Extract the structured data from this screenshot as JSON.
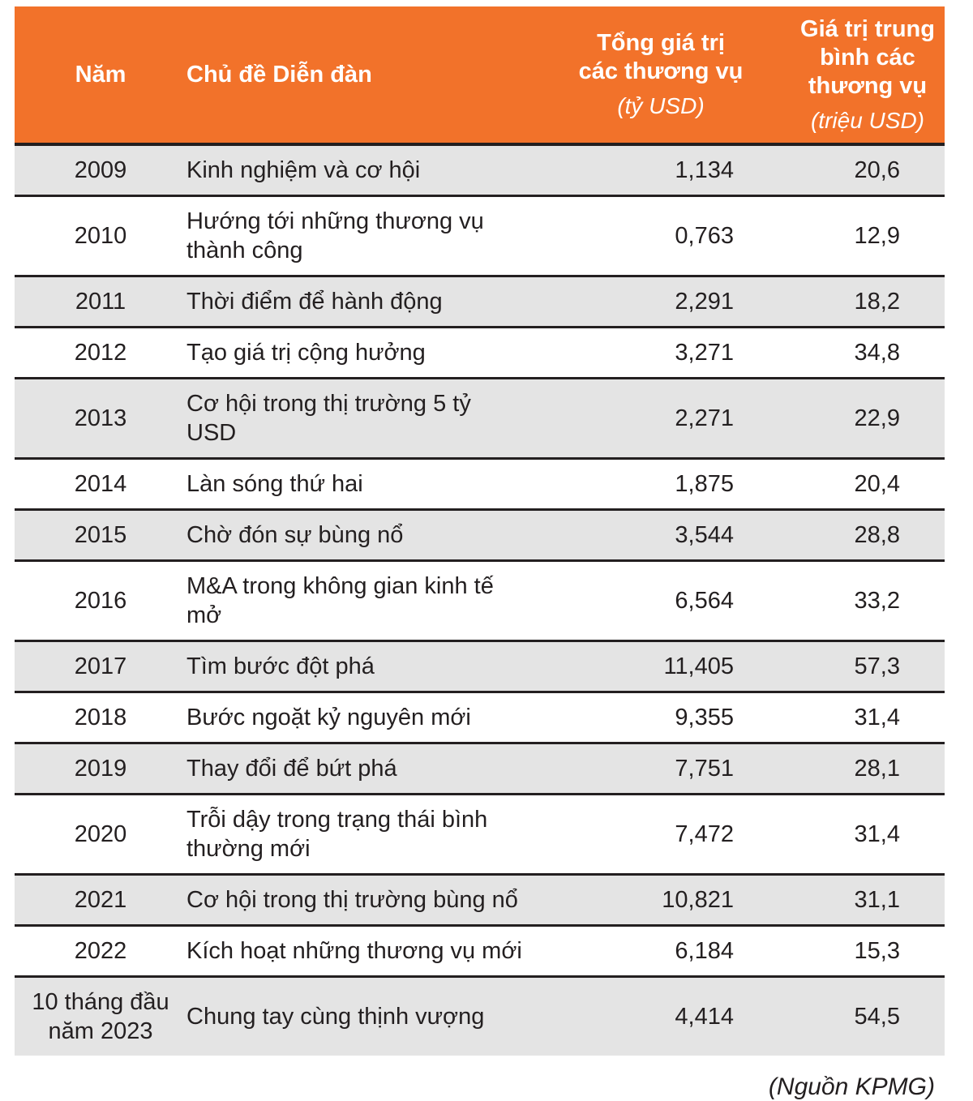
{
  "colors": {
    "header_bg": "#F2722A",
    "header_text": "#FFFFFF",
    "row_alt_bg": "#E4E4E4",
    "divider": "#231F20",
    "body_text": "#231F20"
  },
  "header": {
    "col_year": "Năm",
    "col_topic": "Chủ đề Diễn đàn",
    "col_total": {
      "label": "Tổng giá trị\ncác thương vụ",
      "unit": "(tỷ USD)"
    },
    "col_avg": {
      "label": "Giá trị trung\nbình các\nthương vụ",
      "unit": "(triệu USD)"
    }
  },
  "rows": [
    {
      "year": "2009",
      "topic": "Kinh nghiệm và cơ hội",
      "total": "1,134",
      "avg": "20,6"
    },
    {
      "year": "2010",
      "topic": "Hướng tới những thương vụ\nthành công",
      "total": "0,763",
      "avg": "12,9"
    },
    {
      "year": "2011",
      "topic": "Thời điểm để hành động",
      "total": "2,291",
      "avg": "18,2"
    },
    {
      "year": "2012",
      "topic": "Tạo giá trị cộng hưởng",
      "total": "3,271",
      "avg": "34,8"
    },
    {
      "year": "2013",
      "topic": "Cơ hội trong thị trường 5 tỷ USD",
      "total": "2,271",
      "avg": "22,9"
    },
    {
      "year": "2014",
      "topic": "Làn sóng thứ hai",
      "total": "1,875",
      "avg": "20,4"
    },
    {
      "year": "2015",
      "topic": "Chờ đón sự bùng nổ",
      "total": "3,544",
      "avg": "28,8"
    },
    {
      "year": "2016",
      "topic": "M&A trong không gian kinh tế mở",
      "total": "6,564",
      "avg": "33,2"
    },
    {
      "year": "2017",
      "topic": "Tìm bước đột phá",
      "total": "11,405",
      "avg": "57,3"
    },
    {
      "year": "2018",
      "topic": "Bước ngoặt kỷ nguyên mới",
      "total": "9,355",
      "avg": "31,4"
    },
    {
      "year": "2019",
      "topic": "Thay đổi để bứt phá",
      "total": "7,751",
      "avg": "28,1"
    },
    {
      "year": "2020",
      "topic": "Trỗi dậy trong trạng thái bình\nthường mới",
      "total": "7,472",
      "avg": "31,4"
    },
    {
      "year": "2021",
      "topic": "Cơ hội trong thị trường bùng nổ",
      "total": "10,821",
      "avg": "31,1"
    },
    {
      "year": "2022",
      "topic": "Kích hoạt những thương vụ mới",
      "total": "6,184",
      "avg": "15,3"
    },
    {
      "year": "10 tháng đầu\nnăm 2023",
      "topic": "Chung tay cùng thịnh vượng",
      "total": "4,414",
      "avg": "54,5"
    }
  ],
  "source": "(Nguồn KPMG)",
  "chart_data": {
    "type": "table",
    "columns": [
      "Năm",
      "Chủ đề Diễn đàn",
      "Tổng giá trị các thương vụ (tỷ USD)",
      "Giá trị trung bình các thương vụ (triệu USD)"
    ],
    "categories": [
      "2009",
      "2010",
      "2011",
      "2012",
      "2013",
      "2014",
      "2015",
      "2016",
      "2017",
      "2018",
      "2019",
      "2020",
      "2021",
      "2022",
      "10 tháng đầu năm 2023"
    ],
    "themes": [
      "Kinh nghiệm và cơ hội",
      "Hướng tới những thương vụ thành công",
      "Thời điểm để hành động",
      "Tạo giá trị cộng hưởng",
      "Cơ hội trong thị trường 5 tỷ USD",
      "Làn sóng thứ hai",
      "Chờ đón sự bùng nổ",
      "M&A trong không gian kinh tế mở",
      "Tìm bước đột phá",
      "Bước ngoặt kỷ nguyên mới",
      "Thay đổi để bứt phá",
      "Trỗi dậy trong trạng thái bình thường mới",
      "Cơ hội trong thị trường bùng nổ",
      "Kích hoạt những thương vụ mới",
      "Chung tay cùng thịnh vượng"
    ],
    "series": [
      {
        "name": "Tổng giá trị các thương vụ (tỷ USD)",
        "values": [
          1.134,
          0.763,
          2.291,
          3.271,
          2.271,
          1.875,
          3.544,
          6.564,
          11.405,
          9.355,
          7.751,
          7.472,
          10.821,
          6.184,
          4.414
        ]
      },
      {
        "name": "Giá trị trung bình các thương vụ (triệu USD)",
        "values": [
          20.6,
          12.9,
          18.2,
          34.8,
          22.9,
          20.4,
          28.8,
          33.2,
          57.3,
          31.4,
          28.1,
          31.4,
          31.1,
          15.3,
          54.5
        ]
      }
    ],
    "source": "(Nguồn KPMG)"
  }
}
